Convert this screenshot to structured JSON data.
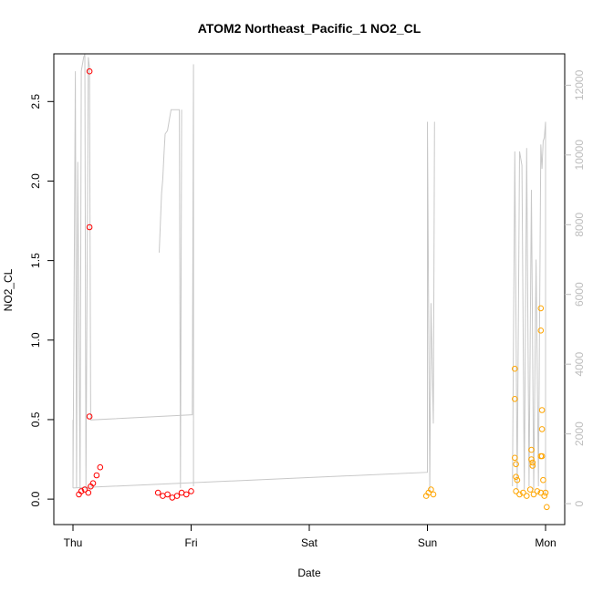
{
  "chart_data": {
    "type": "scatter",
    "title": "ATOM2 Northeast_Pacific_1 NO2_CL",
    "xlabel": "Date",
    "ylabel": "NO2_CL",
    "x_ticks": [
      "Thu",
      "Fri",
      "Sat",
      "Sun",
      "Mon"
    ],
    "y_ticks": [
      "0.0",
      "0.5",
      "1.0",
      "1.5",
      "2.0",
      "2.5"
    ],
    "y_lim": [
      -0.16,
      2.8
    ],
    "y2_ticks": [
      "0",
      "2000",
      "4000",
      "6000",
      "8000",
      "10000",
      "12000"
    ],
    "y2_lim": [
      -600,
      12900
    ],
    "colors": {
      "flight1": "#ff0000",
      "flight2": "#ffa500",
      "altitude": "#c8c8c8",
      "axis": "#000000",
      "axis2": "#bdbdbd"
    },
    "series": [
      {
        "color": "#ff0000",
        "x": [
          0.05,
          0.07,
          0.1,
          0.13,
          0.15,
          0.17,
          0.2,
          0.23
        ],
        "y": [
          0.03,
          0.05,
          0.06,
          0.04,
          0.08,
          0.1,
          0.15,
          0.2
        ]
      },
      {
        "color": "#ff0000",
        "x": [
          0.14,
          0.14,
          0.14
        ],
        "y": [
          2.69,
          1.71,
          0.52
        ]
      },
      {
        "color": "#ff0000",
        "x": [
          0.72,
          0.76,
          0.8,
          0.84,
          0.88,
          0.92,
          0.96,
          1.0
        ],
        "y": [
          0.04,
          0.02,
          0.03,
          0.01,
          0.02,
          0.04,
          0.03,
          0.05
        ]
      },
      {
        "color": "#ffa500",
        "x": [
          2.99,
          3.01,
          3.03,
          3.05
        ],
        "y": [
          0.02,
          0.04,
          0.06,
          0.03
        ]
      },
      {
        "color": "#ffa500",
        "x": [
          3.75,
          3.78,
          3.81,
          3.84,
          3.87,
          3.9,
          3.93,
          3.96,
          3.99,
          4.0
        ],
        "y": [
          0.05,
          0.03,
          0.04,
          0.02,
          0.06,
          0.03,
          0.05,
          0.04,
          0.02,
          0.04
        ]
      },
      {
        "color": "#ffa500",
        "x": [
          3.74,
          3.74,
          3.74,
          3.75,
          3.75,
          3.76,
          3.88,
          3.88,
          3.89,
          3.89,
          3.96,
          3.96,
          3.96,
          3.97,
          3.97,
          3.97,
          3.98,
          4.01
        ],
        "y": [
          0.82,
          0.63,
          0.26,
          0.22,
          0.14,
          0.12,
          0.31,
          0.25,
          0.23,
          0.21,
          1.2,
          1.06,
          0.27,
          0.56,
          0.44,
          0.27,
          0.12,
          -0.05
        ]
      }
    ],
    "altitude": [
      {
        "x": [
          0.0,
          0.0,
          0.02,
          0.03,
          0.04,
          0.06,
          0.07,
          0.09,
          0.1,
          0.11,
          0.13,
          0.14,
          0.15,
          1.01,
          1.02,
          1.02,
          1.02
        ],
        "y": [
          2400,
          450,
          12400,
          450,
          9800,
          400,
          12400,
          12800,
          12900,
          400,
          12800,
          12500,
          2400,
          2550,
          12600,
          12200,
          500
        ]
      },
      {
        "x": [
          0.73,
          0.75,
          0.76,
          0.77,
          0.78,
          0.8,
          0.83,
          0.9,
          0.91,
          0.92
        ],
        "y": [
          7200,
          8900,
          9300,
          10000,
          10600,
          10700,
          11300,
          11300,
          450,
          11300
        ]
      },
      {
        "x": [
          0.0,
          3.0,
          3.0,
          3.02,
          3.03,
          3.05,
          3.06
        ],
        "y": [
          450,
          900,
          10950,
          400,
          5750,
          2300,
          10950
        ]
      },
      {
        "x": [
          3.72,
          3.74,
          3.76,
          3.78,
          3.8,
          3.82,
          3.84,
          3.86,
          3.88,
          3.9,
          3.92,
          3.94,
          3.96,
          3.97,
          3.98,
          3.99,
          4.0,
          4.0
        ],
        "y": [
          500,
          10100,
          400,
          10100,
          9700,
          400,
          10200,
          500,
          9000,
          400,
          7000,
          500,
          10300,
          9600,
          10400,
          10500,
          10950,
          300
        ]
      }
    ]
  }
}
